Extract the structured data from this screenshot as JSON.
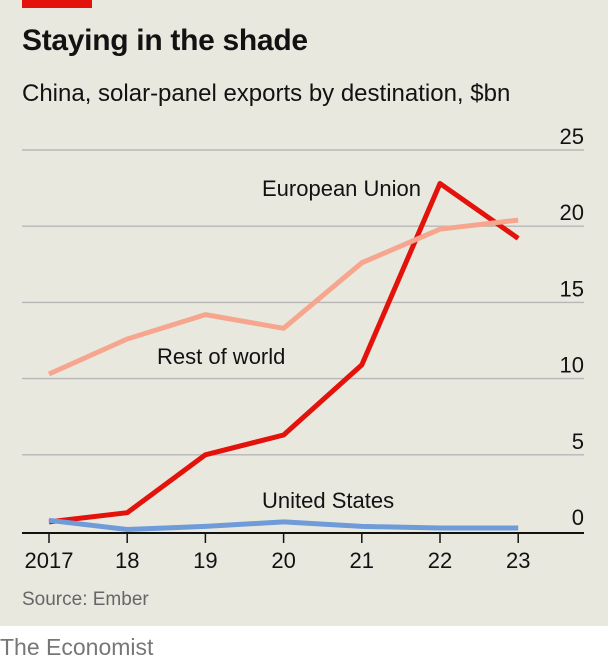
{
  "header": {
    "title": "Staying in the shade",
    "subtitle": "China, solar-panel exports by destination, $bn"
  },
  "footer": {
    "source": "Source: Ember",
    "brand": "The Economist"
  },
  "colors": {
    "background": "#e9e8df",
    "accent": "#e3120b",
    "eu": "#e3120b",
    "rest_of_world": "#f6a68f",
    "united_states": "#6f9bd8",
    "grid": "#b7b7b7"
  },
  "chart_data": {
    "type": "line",
    "title": "Staying in the shade",
    "subtitle": "China, solar-panel exports by destination, $bn",
    "x": [
      2017,
      2018,
      2019,
      2020,
      2021,
      2022,
      2023
    ],
    "x_tick_labels": [
      "2017",
      "18",
      "19",
      "20",
      "21",
      "22",
      "23"
    ],
    "y_ticks": [
      0,
      5,
      10,
      15,
      20,
      25
    ],
    "y_tick_labels": [
      "0",
      "5",
      "10",
      "15",
      "20",
      "25"
    ],
    "ylim": [
      0,
      25
    ],
    "y_axis_side": "right",
    "grid": true,
    "series": [
      {
        "name": "European Union",
        "values": [
          0.6,
          1.2,
          5.0,
          6.3,
          10.9,
          22.8,
          19.2
        ],
        "color": "#e3120b"
      },
      {
        "name": "Rest of world",
        "values": [
          10.3,
          12.6,
          14.2,
          13.3,
          17.6,
          19.8,
          20.4
        ],
        "color": "#f6a68f"
      },
      {
        "name": "United States",
        "values": [
          0.7,
          0.1,
          0.3,
          0.6,
          0.3,
          0.2,
          0.2
        ],
        "color": "#6f9bd8"
      }
    ],
    "source": "Source: Ember"
  }
}
